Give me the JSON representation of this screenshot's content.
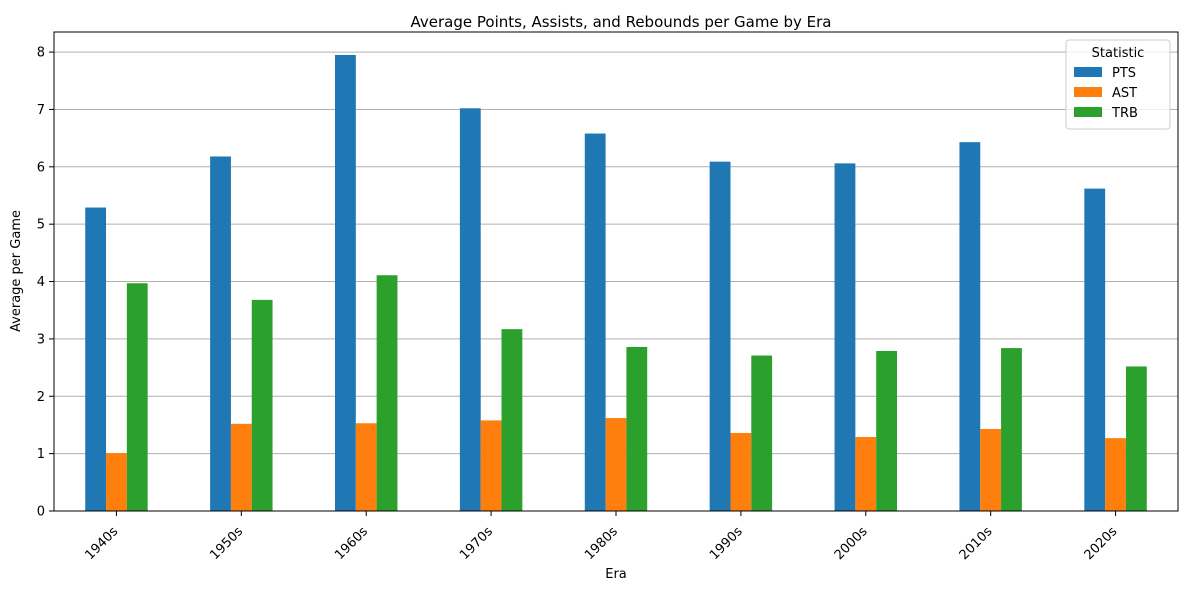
{
  "chart_data": {
    "type": "bar",
    "title": "Average Points, Assists, and Rebounds per Game by Era",
    "xlabel": "Era",
    "ylabel": "Average per Game",
    "categories": [
      "1940s",
      "1950s",
      "1960s",
      "1970s",
      "1980s",
      "1990s",
      "2000s",
      "2010s",
      "2020s"
    ],
    "series": [
      {
        "name": "PTS",
        "color": "#1f77b4",
        "values": [
          5.29,
          6.18,
          7.95,
          7.02,
          6.58,
          6.09,
          6.06,
          6.43,
          5.62
        ]
      },
      {
        "name": "AST",
        "color": "#ff7f0e",
        "values": [
          1.01,
          1.52,
          1.53,
          1.58,
          1.62,
          1.36,
          1.29,
          1.43,
          1.27
        ]
      },
      {
        "name": "TRB",
        "color": "#2ca02c",
        "values": [
          3.97,
          3.68,
          4.11,
          3.17,
          2.86,
          2.71,
          2.79,
          2.84,
          2.52
        ]
      }
    ],
    "ylim": [
      0,
      8.35
    ],
    "yticks": [
      0,
      1,
      2,
      3,
      4,
      5,
      6,
      7,
      8
    ],
    "grid": "y",
    "legend_title": "Statistic",
    "legend_position": "top-right"
  }
}
